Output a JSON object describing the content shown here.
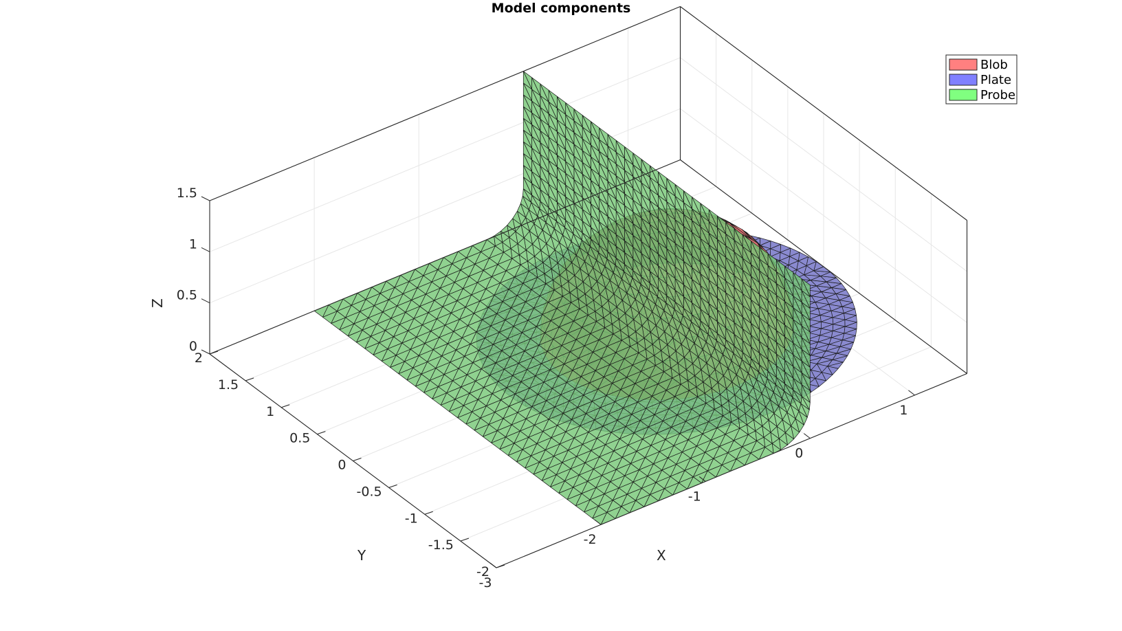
{
  "chart_data": {
    "type": "3d-surface",
    "title": "Model components",
    "xlabel": "X",
    "ylabel": "Y",
    "zlabel": "Z",
    "xlim": [
      -3,
      1.5
    ],
    "ylim": [
      -2,
      2
    ],
    "zlim": [
      0,
      1.5
    ],
    "x_ticks": [
      "-3",
      "-2",
      "-1",
      "0",
      "1"
    ],
    "y_ticks": [
      "-2",
      "-1.5",
      "-1",
      "-0.5",
      "0",
      "0.5",
      "1",
      "1.5",
      "2"
    ],
    "z_ticks": [
      "0",
      "0.5",
      "1",
      "1.5"
    ],
    "grid": true,
    "legend_position": "top-right",
    "legend": [
      {
        "name": "Blob",
        "color": "#ff8080"
      },
      {
        "name": "Plate",
        "color": "#8080ff"
      },
      {
        "name": "Probe",
        "color": "#80ff80"
      }
    ],
    "series": [
      {
        "name": "Blob",
        "shape": "hemisphere",
        "center": [
          0,
          0,
          0
        ],
        "radius": 1.0,
        "color": "#e8787a"
      },
      {
        "name": "Plate",
        "shape": "disc",
        "center": [
          0,
          0,
          0
        ],
        "radius": 1.5,
        "color": "#8a8ad0"
      },
      {
        "name": "Probe",
        "shape": "L-profile sheet",
        "x_range": [
          -2,
          0
        ],
        "y_range": [
          -2,
          2
        ],
        "z_range": [
          0,
          1.5
        ],
        "color": "#78c878"
      }
    ]
  }
}
